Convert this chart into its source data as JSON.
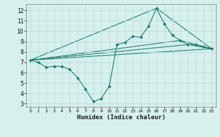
{
  "xlabel": "Humidex (Indice chaleur)",
  "background_color": "#d6f0ee",
  "grid_color": "#b8dbd8",
  "line_color": "#1a7a6e",
  "xlim": [
    -0.5,
    23.5
  ],
  "ylim": [
    2.7,
    12.6
  ],
  "yticks": [
    3,
    4,
    5,
    6,
    7,
    8,
    9,
    10,
    11,
    12
  ],
  "xticks": [
    0,
    1,
    2,
    3,
    4,
    5,
    6,
    7,
    8,
    9,
    10,
    11,
    12,
    13,
    14,
    15,
    16,
    17,
    18,
    19,
    20,
    21,
    22,
    23
  ],
  "main_series": {
    "x": [
      0,
      1,
      2,
      3,
      4,
      5,
      6,
      7,
      8,
      9,
      10,
      11,
      12,
      13,
      14,
      15,
      16,
      17,
      18,
      19,
      20,
      21,
      22,
      23
    ],
    "y": [
      7.2,
      7.0,
      6.5,
      6.6,
      6.6,
      6.3,
      5.5,
      4.4,
      3.2,
      3.5,
      4.7,
      8.7,
      8.9,
      9.5,
      9.4,
      10.5,
      12.2,
      10.7,
      9.6,
      9.1,
      8.7,
      8.7,
      8.5,
      8.3
    ]
  },
  "straight_lines": [
    {
      "x": [
        0,
        23
      ],
      "y": [
        7.2,
        8.3
      ]
    },
    {
      "x": [
        0,
        16,
        23
      ],
      "y": [
        7.2,
        12.2,
        8.3
      ]
    },
    {
      "x": [
        0,
        19,
        23
      ],
      "y": [
        7.2,
        9.1,
        8.3
      ]
    },
    {
      "x": [
        0,
        20,
        23
      ],
      "y": [
        7.2,
        8.7,
        8.3
      ]
    }
  ]
}
